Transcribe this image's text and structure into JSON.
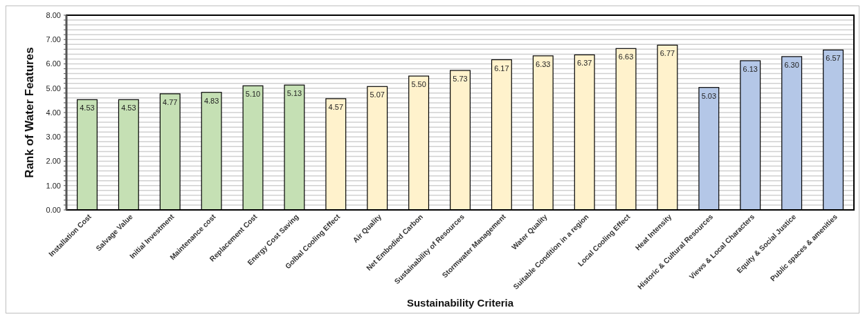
{
  "chart_data": {
    "type": "bar",
    "xlabel": "Sustainability Criteria",
    "ylabel": "Rank of Water Features",
    "categories": [
      "Installation Cost",
      "Salvage Value",
      "Initial Investment",
      "Maintenance cost",
      "Replacement Cost",
      "Energy Cost Saving",
      "Golbal Cooling Effect",
      "Air Quality",
      "Net Embodied Carbon",
      "Sustainability of Resources",
      "Stormwater Management",
      "Water Quality",
      "Suitable Condition in a region",
      "Local Cooling Effect",
      "Heat Intensity",
      "Historic & Cultural Resources",
      "Views & Local Characters",
      "Equity & Social Justice",
      "Public spaces & amenities"
    ],
    "values": [
      4.53,
      4.53,
      4.77,
      4.83,
      5.1,
      5.13,
      4.57,
      5.07,
      5.5,
      5.73,
      6.17,
      6.33,
      6.37,
      6.63,
      6.77,
      5.03,
      6.13,
      6.3,
      6.57
    ],
    "value_labels": [
      "4.53",
      "4.53",
      "4.77",
      "4.83",
      "5.10",
      "5.13",
      "4.57",
      "5.07",
      "5.50",
      "5.73",
      "6.17",
      "6.33",
      "6.37",
      "6.63",
      "6.77",
      "5.03",
      "6.13",
      "6.30",
      "6.57"
    ],
    "colors": [
      "#c5e0b4",
      "#c5e0b4",
      "#c5e0b4",
      "#c5e0b4",
      "#c5e0b4",
      "#c5e0b4",
      "#fff2cc",
      "#fff2cc",
      "#fff2cc",
      "#fff2cc",
      "#fff2cc",
      "#fff2cc",
      "#fff2cc",
      "#fff2cc",
      "#fff2cc",
      "#b4c7e7",
      "#b4c7e7",
      "#b4c7e7",
      "#b4c7e7"
    ],
    "ylim": [
      0,
      8
    ],
    "yticks": [
      {
        "value": 0,
        "label": "0.00"
      },
      {
        "value": 0.2,
        "label": null
      },
      {
        "value": 0.4,
        "label": null
      },
      {
        "value": 0.6,
        "label": null
      },
      {
        "value": 0.8,
        "label": null
      },
      {
        "value": 1,
        "label": "1.00"
      },
      {
        "value": 1.2,
        "label": null
      },
      {
        "value": 1.4,
        "label": null
      },
      {
        "value": 1.6,
        "label": null
      },
      {
        "value": 1.8,
        "label": null
      },
      {
        "value": 2,
        "label": "2.00"
      },
      {
        "value": 2.2,
        "label": null
      },
      {
        "value": 2.4,
        "label": null
      },
      {
        "value": 2.6,
        "label": null
      },
      {
        "value": 2.8,
        "label": null
      },
      {
        "value": 3,
        "label": "3.00"
      },
      {
        "value": 3.2,
        "label": null
      },
      {
        "value": 3.4,
        "label": null
      },
      {
        "value": 3.6,
        "label": null
      },
      {
        "value": 3.8,
        "label": null
      },
      {
        "value": 4,
        "label": "4.00"
      },
      {
        "value": 4.2,
        "label": null
      },
      {
        "value": 4.4,
        "label": null
      },
      {
        "value": 4.6,
        "label": null
      },
      {
        "value": 4.8,
        "label": null
      },
      {
        "value": 5,
        "label": "5.00"
      },
      {
        "value": 5.2,
        "label": null
      },
      {
        "value": 5.4,
        "label": null
      },
      {
        "value": 5.6,
        "label": null
      },
      {
        "value": 5.8,
        "label": null
      },
      {
        "value": 6,
        "label": "6.00"
      },
      {
        "value": 6.2,
        "label": null
      },
      {
        "value": 6.4,
        "label": null
      },
      {
        "value": 6.6,
        "label": null
      },
      {
        "value": 6.8,
        "label": null
      },
      {
        "value": 7,
        "label": "7.00"
      },
      {
        "value": 7.2,
        "label": null
      },
      {
        "value": 7.4,
        "label": null
      },
      {
        "value": 7.6,
        "label": null
      },
      {
        "value": 7.8,
        "label": null
      },
      {
        "value": 8,
        "label": "8.00"
      }
    ],
    "grid": "y"
  }
}
